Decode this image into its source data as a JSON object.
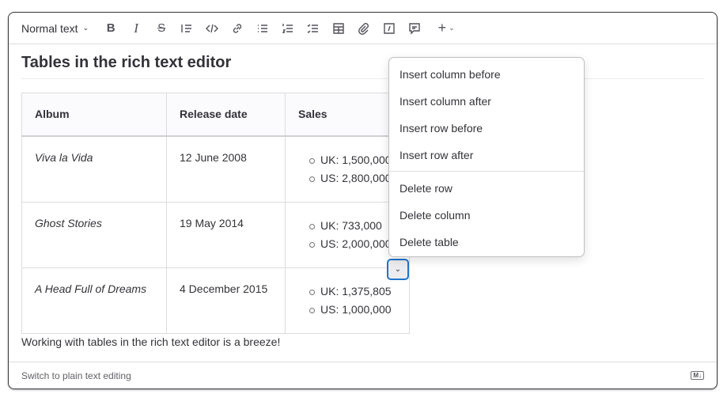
{
  "toolbar": {
    "text_style": "Normal text",
    "buttons": [
      "bold",
      "italic",
      "strikethrough",
      "blockquote",
      "code",
      "link",
      "bullet-list",
      "numbered-list",
      "task-list",
      "table",
      "attachment",
      "details",
      "comment",
      "more"
    ]
  },
  "doc": {
    "title": "Tables in the rich text editor",
    "table": {
      "headers": [
        "Album",
        "Release date",
        "Sales"
      ],
      "rows": [
        {
          "album": "Viva la Vida",
          "date": "12 June 2008",
          "sales": [
            "UK: 1,500,000",
            "US: 2,800,000"
          ]
        },
        {
          "album": "Ghost Stories",
          "date": "19 May 2014",
          "sales": [
            "UK: 733,000",
            "US: 2,000,000"
          ]
        },
        {
          "album": "A Head Full of Dreams",
          "date": "4 December 2015",
          "sales": [
            "UK: 1,375,805",
            "US: 1,000,000"
          ]
        }
      ]
    },
    "paragraph": "Working with tables in the rich text editor is a breeze!"
  },
  "footer": {
    "switch_label": "Switch to plain text editing",
    "markdown_badge": "M↓"
  },
  "menu": {
    "items": [
      "Insert column before",
      "Insert column after",
      "Insert row before",
      "Insert row after",
      "Delete row",
      "Delete column",
      "Delete table"
    ]
  }
}
